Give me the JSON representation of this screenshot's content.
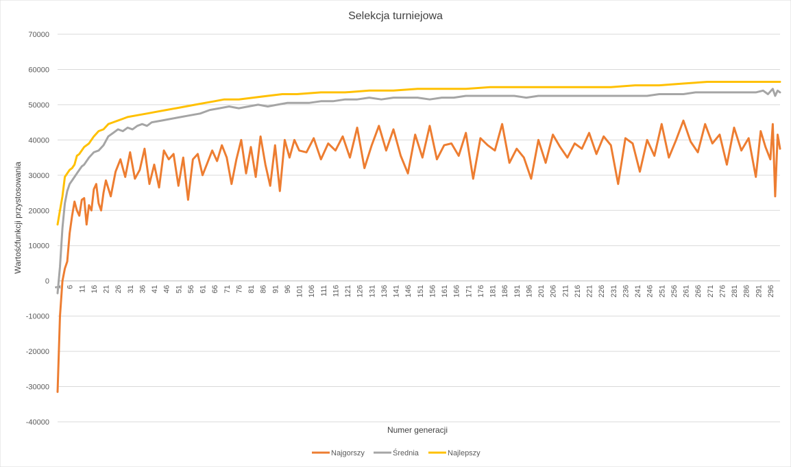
{
  "chart_data": {
    "type": "line",
    "title": "Selekcja turniejowa",
    "xlabel": "Numer generacji",
    "ylabel": "Wartośćfunkcji przystosowania",
    "ylim": [
      -40000,
      70000
    ],
    "y_ticks": [
      -40000,
      -30000,
      -20000,
      -10000,
      0,
      10000,
      20000,
      30000,
      40000,
      50000,
      60000,
      70000
    ],
    "xlim": [
      1,
      300
    ],
    "x_ticks": [
      1,
      6,
      11,
      16,
      21,
      26,
      31,
      36,
      41,
      46,
      51,
      56,
      61,
      66,
      71,
      76,
      81,
      86,
      91,
      96,
      101,
      106,
      111,
      116,
      121,
      126,
      131,
      136,
      141,
      146,
      151,
      156,
      161,
      166,
      171,
      176,
      181,
      186,
      191,
      196,
      201,
      206,
      211,
      216,
      221,
      226,
      231,
      236,
      241,
      246,
      251,
      256,
      261,
      266,
      271,
      276,
      281,
      286,
      291,
      296
    ],
    "grid": true,
    "legend_position": "bottom",
    "series": [
      {
        "name": "Najgorszy",
        "color": "#ED7D31",
        "x": [
          1,
          2,
          3,
          4,
          5,
          6,
          7,
          8,
          9,
          10,
          11,
          12,
          13,
          14,
          15,
          16,
          17,
          18,
          19,
          20,
          21,
          23,
          25,
          27,
          29,
          31,
          33,
          35,
          37,
          39,
          41,
          43,
          45,
          47,
          49,
          51,
          53,
          55,
          57,
          59,
          61,
          63,
          65,
          67,
          69,
          71,
          73,
          75,
          77,
          79,
          81,
          83,
          85,
          87,
          89,
          91,
          93,
          95,
          97,
          99,
          101,
          104,
          107,
          110,
          113,
          116,
          119,
          122,
          125,
          128,
          131,
          134,
          137,
          140,
          143,
          146,
          149,
          152,
          155,
          158,
          161,
          164,
          167,
          170,
          173,
          176,
          179,
          182,
          185,
          188,
          191,
          194,
          197,
          200,
          203,
          206,
          209,
          212,
          215,
          218,
          221,
          224,
          227,
          230,
          233,
          236,
          239,
          242,
          245,
          248,
          251,
          254,
          257,
          260,
          263,
          266,
          269,
          272,
          275,
          278,
          281,
          284,
          287,
          290,
          292,
          294,
          296,
          297,
          298,
          299,
          300
        ],
        "values": [
          -31500,
          -10000,
          0,
          3500,
          5500,
          13500,
          18500,
          22500,
          20000,
          18500,
          23000,
          23500,
          16000,
          21500,
          20000,
          26000,
          27500,
          22000,
          20000,
          25000,
          28500,
          24000,
          31000,
          34500,
          29500,
          36500,
          29000,
          31500,
          37500,
          27500,
          33000,
          26500,
          37000,
          34500,
          36000,
          27000,
          35000,
          23000,
          34500,
          36000,
          30000,
          33500,
          37000,
          34000,
          38500,
          35000,
          27500,
          34500,
          40000,
          30500,
          38000,
          29500,
          41000,
          33000,
          27000,
          38500,
          25500,
          40000,
          35000,
          40000,
          37000,
          36500,
          40500,
          34500,
          39000,
          37000,
          41000,
          35000,
          43500,
          32000,
          38500,
          44000,
          37000,
          43000,
          35500,
          30500,
          41500,
          35000,
          44000,
          34500,
          38500,
          39000,
          35500,
          42000,
          29000,
          40500,
          38500,
          37000,
          44500,
          33500,
          37500,
          35000,
          29000,
          40000,
          33500,
          41500,
          38000,
          35000,
          39000,
          37500,
          42000,
          36000,
          41000,
          38500,
          27500,
          40500,
          39000,
          31000,
          40000,
          35500,
          44500,
          35000,
          40000,
          45500,
          39500,
          36500,
          44500,
          39000,
          41500,
          33000,
          43500,
          37000,
          40500,
          29500,
          42500,
          38000,
          34500,
          44500,
          24000,
          41500,
          37500
        ]
      },
      {
        "name": "Średnia",
        "color": "#A5A5A5",
        "x": [
          1,
          2,
          3,
          4,
          5,
          6,
          7,
          8,
          9,
          10,
          11,
          12,
          14,
          16,
          18,
          20,
          22,
          24,
          26,
          28,
          30,
          32,
          34,
          36,
          38,
          40,
          44,
          48,
          52,
          56,
          60,
          64,
          68,
          72,
          76,
          80,
          84,
          88,
          92,
          96,
          100,
          105,
          110,
          115,
          120,
          125,
          130,
          135,
          140,
          145,
          150,
          155,
          160,
          165,
          170,
          175,
          180,
          185,
          190,
          195,
          200,
          205,
          210,
          215,
          220,
          225,
          230,
          235,
          240,
          245,
          250,
          255,
          260,
          265,
          270,
          275,
          280,
          285,
          290,
          293,
          295,
          297,
          298,
          299,
          300
        ],
        "values": [
          -3500,
          4000,
          15000,
          22000,
          25500,
          27500,
          28500,
          29500,
          30500,
          31500,
          32500,
          33000,
          35000,
          36500,
          37000,
          38500,
          41000,
          42000,
          43000,
          42500,
          43500,
          43000,
          44000,
          44500,
          44000,
          45000,
          45500,
          46000,
          46500,
          47000,
          47500,
          48500,
          49000,
          49500,
          49000,
          49500,
          50000,
          49500,
          50000,
          50500,
          50500,
          50500,
          51000,
          51000,
          51500,
          51500,
          52000,
          51500,
          52000,
          52000,
          52000,
          51500,
          52000,
          52000,
          52500,
          52500,
          52500,
          52500,
          52500,
          52000,
          52500,
          52500,
          52500,
          52500,
          52500,
          52500,
          52500,
          52500,
          52500,
          52500,
          53000,
          53000,
          53000,
          53500,
          53500,
          53500,
          53500,
          53500,
          53500,
          54000,
          53000,
          54500,
          52500,
          54000,
          53500
        ]
      },
      {
        "name": "Najlepszy",
        "color": "#FFC000",
        "x": [
          1,
          2,
          3,
          4,
          5,
          6,
          7,
          8,
          9,
          10,
          12,
          14,
          16,
          18,
          20,
          22,
          24,
          26,
          28,
          30,
          34,
          38,
          42,
          46,
          50,
          54,
          58,
          62,
          66,
          70,
          76,
          82,
          88,
          94,
          100,
          110,
          120,
          130,
          140,
          150,
          160,
          170,
          180,
          190,
          200,
          210,
          220,
          230,
          240,
          250,
          260,
          270,
          280,
          290,
          300
        ],
        "values": [
          16000,
          20000,
          24000,
          29500,
          30500,
          31500,
          32000,
          33000,
          35500,
          36000,
          38000,
          39000,
          41000,
          42500,
          43000,
          44500,
          45000,
          45500,
          46000,
          46500,
          47000,
          47500,
          48000,
          48500,
          49000,
          49500,
          50000,
          50500,
          51000,
          51500,
          51500,
          52000,
          52500,
          53000,
          53000,
          53500,
          53500,
          54000,
          54000,
          54500,
          54500,
          54500,
          55000,
          55000,
          55000,
          55000,
          55000,
          55000,
          55500,
          55500,
          56000,
          56500,
          56500,
          56500,
          56500
        ]
      }
    ]
  }
}
